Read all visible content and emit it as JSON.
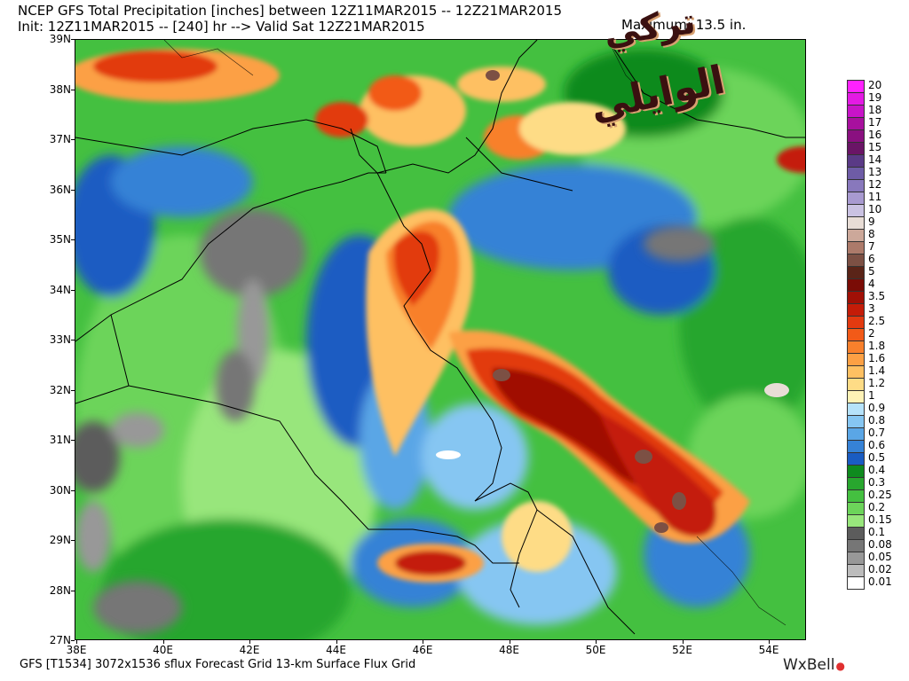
{
  "header": {
    "title_line": "NCEP GFS Total Precipitation [inches] between 12Z11MAR2015 -- 12Z21MAR2015",
    "init_line": "Init: 12Z11MAR2015 -- [240] hr --> Valid Sat 12Z21MAR2015",
    "maximum_line": "Maximum:   13.5 in."
  },
  "watermark": {
    "line1": "تركي",
    "line2": "الوايلي"
  },
  "lat_labels": [
    "39N",
    "38N",
    "37N",
    "36N",
    "35N",
    "34N",
    "33N",
    "32N",
    "31N",
    "30N",
    "29N",
    "28N",
    "27N"
  ],
  "lon_labels": [
    "38E",
    "40E",
    "42E",
    "44E",
    "46E",
    "48E",
    "50E",
    "52E",
    "54E"
  ],
  "legend": {
    "levels": [
      {
        "label": "20",
        "color": "#ff22ff"
      },
      {
        "label": "19",
        "color": "#e41ae4"
      },
      {
        "label": "18",
        "color": "#c814c8"
      },
      {
        "label": "17",
        "color": "#a8109e"
      },
      {
        "label": "16",
        "color": "#8a1080"
      },
      {
        "label": "15",
        "color": "#6a1566"
      },
      {
        "label": "14",
        "color": "#5a3a86"
      },
      {
        "label": "13",
        "color": "#6e5ca6"
      },
      {
        "label": "12",
        "color": "#8878bc"
      },
      {
        "label": "11",
        "color": "#a89ad0"
      },
      {
        "label": "10",
        "color": "#cac2e2"
      },
      {
        "label": "9",
        "color": "#e8ddd6"
      },
      {
        "label": "8",
        "color": "#cca89a"
      },
      {
        "label": "7",
        "color": "#ac7a6a"
      },
      {
        "label": "6",
        "color": "#7c5044"
      },
      {
        "label": "5",
        "color": "#5a2418"
      },
      {
        "label": "4",
        "color": "#7a0c06"
      },
      {
        "label": "3.5",
        "color": "#a01006"
      },
      {
        "label": "3",
        "color": "#c41c08"
      },
      {
        "label": "2.5",
        "color": "#e23a10"
      },
      {
        "label": "2",
        "color": "#f25a18"
      },
      {
        "label": "1.8",
        "color": "#f8802c"
      },
      {
        "label": "1.6",
        "color": "#fca044"
      },
      {
        "label": "1.4",
        "color": "#fec062"
      },
      {
        "label": "1.2",
        "color": "#fedc86"
      },
      {
        "label": "1",
        "color": "#fef2b6"
      },
      {
        "label": "0.9",
        "color": "#b6e2fa"
      },
      {
        "label": "0.8",
        "color": "#86c6f2"
      },
      {
        "label": "0.7",
        "color": "#5aa6e6"
      },
      {
        "label": "0.6",
        "color": "#3682d6"
      },
      {
        "label": "0.5",
        "color": "#1a5cc2"
      },
      {
        "label": "0.4",
        "color": "#0e8a1e"
      },
      {
        "label": "0.3",
        "color": "#28a62e"
      },
      {
        "label": "0.25",
        "color": "#44c040"
      },
      {
        "label": "0.2",
        "color": "#6cd45a"
      },
      {
        "label": "0.15",
        "color": "#98e67c"
      },
      {
        "label": "0.1",
        "color": "#5c5c5c"
      },
      {
        "label": "0.08",
        "color": "#767676"
      },
      {
        "label": "0.05",
        "color": "#989898"
      },
      {
        "label": "0.02",
        "color": "#bcbcbc"
      },
      {
        "label": "0.01",
        "color": "#ffffff"
      }
    ]
  },
  "footer": {
    "model_line": "GFS [T1534] 3072x1536 sflux Forecast Grid 13-km Surface Flux Grid",
    "brand": "WxBell"
  }
}
